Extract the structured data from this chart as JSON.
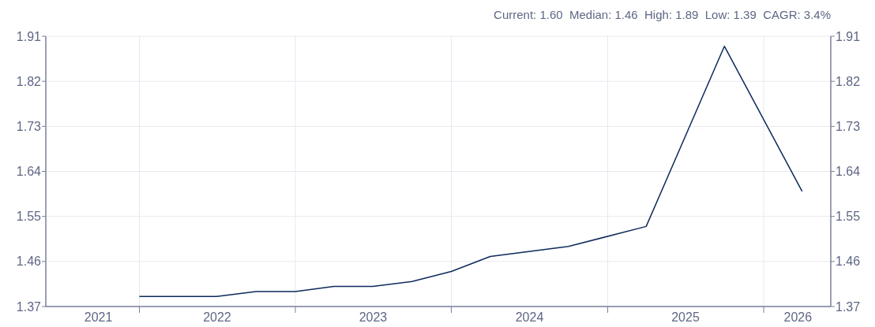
{
  "chart_data": {
    "type": "line",
    "annotations": [
      "Current: 1.60  Median: 1.46  High: 1.89  Low: 1.39  CAGR: 3.4%"
    ],
    "x": [
      "2022-01",
      "2022-07",
      "2022-10",
      "2023-01",
      "2023-04",
      "2023-07",
      "2023-10",
      "2024-01",
      "2024-04",
      "2024-10",
      "2025-04",
      "2025-10",
      "2026-04"
    ],
    "series": [
      {
        "color": "#0d2a5c",
        "values": [
          1.39,
          1.39,
          1.4,
          1.4,
          1.41,
          1.41,
          1.42,
          1.44,
          1.47,
          1.49,
          1.53,
          1.89,
          1.6
        ]
      }
    ],
    "xlim": [
      "2021-05-27",
      "2026-06-07"
    ],
    "xticks": [
      {
        "value": "2021-09-27",
        "label": "2021"
      },
      {
        "value": "2022-01-01",
        "label": null
      },
      {
        "value": "2022-07-02",
        "label": "2022"
      },
      {
        "value": "2023-01-01",
        "label": null
      },
      {
        "value": "2023-07-02",
        "label": "2023"
      },
      {
        "value": "2024-01-01",
        "label": null
      },
      {
        "value": "2024-07-02",
        "label": "2024"
      },
      {
        "value": "2025-01-01",
        "label": null
      },
      {
        "value": "2025-07-02",
        "label": "2025"
      },
      {
        "value": "2026-01-01",
        "label": null
      },
      {
        "value": "2026-03-22",
        "label": "2026"
      }
    ],
    "ylim": [
      1.37,
      1.91
    ],
    "yticks": [
      {
        "value": 1.37,
        "label": "1.37"
      },
      {
        "value": 1.46,
        "label": "1.46"
      },
      {
        "value": 1.55,
        "label": "1.55"
      },
      {
        "value": 1.64,
        "label": "1.64"
      },
      {
        "value": 1.73,
        "label": "1.73"
      },
      {
        "value": 1.82,
        "label": "1.82"
      },
      {
        "value": 1.91,
        "label": "1.91"
      }
    ],
    "y2lim": [
      1.37,
      1.91
    ],
    "y2ticks": [
      {
        "value": 1.37,
        "label": "1.37"
      },
      {
        "value": 1.46,
        "label": "1.46"
      },
      {
        "value": 1.55,
        "label": "1.55"
      },
      {
        "value": 1.64,
        "label": "1.64"
      },
      {
        "value": 1.73,
        "label": "1.73"
      },
      {
        "value": 1.82,
        "label": "1.82"
      },
      {
        "value": 1.91,
        "label": "1.91"
      }
    ],
    "grid": true,
    "marker": "none",
    "line_style": "solid"
  }
}
